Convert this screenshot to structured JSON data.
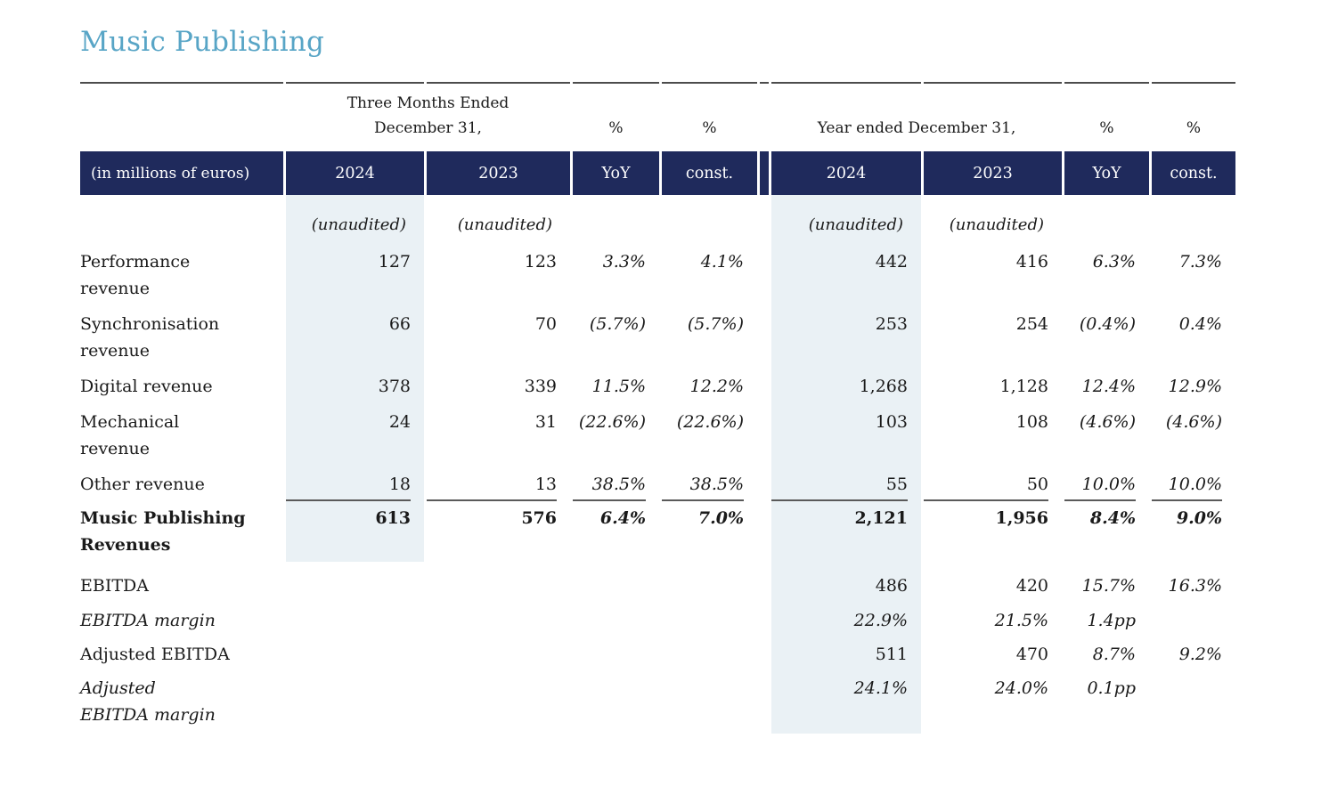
{
  "title": "Music Publishing",
  "colors": {
    "accent_title_blue": "#58a5c6",
    "header_navy": "#1f2a5c",
    "column_shade_blue": "#eaf1f5",
    "text": "#1a1a1a",
    "rule_gray": "#4c4c4c"
  },
  "header": {
    "corner_label": "(in millions of euros)",
    "quarter_group": {
      "period_line1": "Three Months Ended",
      "period_line2": "December 31,",
      "pct_yoy": "%",
      "pct_const": "%",
      "year_2024": "2024",
      "year_2023": "2023",
      "yoy": "YoY",
      "const": "const."
    },
    "year_group": {
      "period_line2": "Year ended December 31,",
      "pct_yoy": "%",
      "pct_const": "%",
      "year_2024": "2024",
      "year_2023": "2023",
      "yoy": "YoY",
      "const": "const."
    },
    "unaudited": {
      "q2024": "(unaudited)",
      "q2023": "(unaudited)",
      "y2024": "(unaudited)",
      "y2023": "(unaudited)"
    }
  },
  "rows": [
    {
      "label": "Performance\nrevenue",
      "bold": false,
      "italic_label": false,
      "underline_after": false,
      "cells": [
        "127",
        "123",
        "3.3%",
        "4.1%",
        "442",
        "416",
        "6.3%",
        "7.3%"
      ]
    },
    {
      "label": "Synchronisation\nrevenue",
      "bold": false,
      "italic_label": false,
      "underline_after": false,
      "cells": [
        "66",
        "70",
        "(5.7%)",
        "(5.7%)",
        "253",
        "254",
        "(0.4%)",
        "0.4%"
      ]
    },
    {
      "label": "Digital revenue",
      "bold": false,
      "italic_label": false,
      "underline_after": false,
      "cells": [
        "378",
        "339",
        "11.5%",
        "12.2%",
        "1,268",
        "1,128",
        "12.4%",
        "12.9%"
      ]
    },
    {
      "label": "Mechanical\nrevenue",
      "bold": false,
      "italic_label": false,
      "underline_after": false,
      "cells": [
        "24",
        "31",
        "(22.6%)",
        "(22.6%)",
        "103",
        "108",
        "(4.6%)",
        "(4.6%)"
      ]
    },
    {
      "label": "Other revenue",
      "bold": false,
      "italic_label": false,
      "underline_after": true,
      "cells": [
        "18",
        "13",
        "38.5%",
        "38.5%",
        "55",
        "50",
        "10.0%",
        "10.0%"
      ]
    },
    {
      "label": "Music Publishing\nRevenues",
      "bold": true,
      "italic_label": false,
      "underline_after": false,
      "cells": [
        "613",
        "576",
        "6.4%",
        "7.0%",
        "2,121",
        "1,956",
        "8.4%",
        "9.0%"
      ]
    },
    {
      "label": "EBITDA",
      "bold": false,
      "italic_label": false,
      "underline_after": false,
      "cells": [
        "",
        "",
        "",
        "",
        "486",
        "420",
        "15.7%",
        "16.3%"
      ]
    },
    {
      "label": "EBITDA margin",
      "bold": false,
      "italic_label": true,
      "underline_after": false,
      "cells": [
        "",
        "",
        "",
        "",
        "22.9%",
        "21.5%",
        "1.4pp",
        ""
      ]
    },
    {
      "label": "Adjusted EBITDA",
      "bold": false,
      "italic_label": false,
      "underline_after": false,
      "cells": [
        "",
        "",
        "",
        "",
        "511",
        "470",
        "8.7%",
        "9.2%"
      ]
    },
    {
      "label": "Adjusted\nEBITDA margin",
      "bold": false,
      "italic_label": true,
      "underline_after": false,
      "cells": [
        "",
        "",
        "",
        "",
        "24.1%",
        "24.0%",
        "0.1pp",
        ""
      ]
    }
  ]
}
